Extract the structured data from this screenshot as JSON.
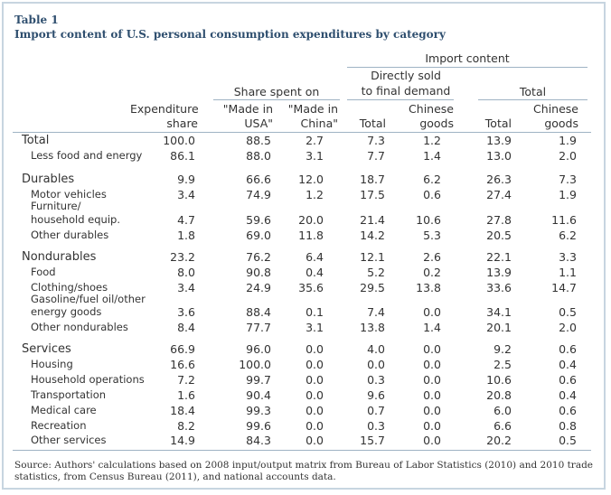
{
  "title": {
    "table_number": "Table 1",
    "caption": "Import content of U.S. personal consumption expenditures by category"
  },
  "headers": {
    "import_content": "Import content",
    "directly_sold_line1": "Directly sold",
    "directly_sold_line2": "to final demand",
    "total_group": "Total",
    "share_spent_on": "Share spent on",
    "expenditure_line1": "Expenditure",
    "expenditure_line2": "share",
    "made_usa_line1": "\"Made in",
    "made_usa_line2": "USA\"",
    "made_china_line1": "\"Made in",
    "made_china_line2": "China\"",
    "total_col": "Total",
    "chinese_line1": "Chinese",
    "chinese_line2": "goods",
    "total_col2": "Total",
    "chinese2_line1": "Chinese",
    "chinese2_line2": "goods"
  },
  "rows": [
    {
      "label": "Total",
      "values": [
        "100.0",
        "88.5",
        "2.7",
        "7.3",
        "1.2",
        "13.9",
        "1.9"
      ]
    },
    {
      "label": "Less food and energy",
      "values": [
        "86.1",
        "88.0",
        "3.1",
        "7.7",
        "1.4",
        "13.0",
        "2.0"
      ]
    },
    {
      "label": "Durables",
      "values": [
        "9.9",
        "66.6",
        "12.0",
        "18.7",
        "6.2",
        "26.3",
        "7.3"
      ]
    },
    {
      "label": "Motor vehicles",
      "values": [
        "3.4",
        "74.9",
        "1.2",
        "17.5",
        "0.6",
        "27.4",
        "1.9"
      ]
    },
    {
      "label_line1": "Furniture/",
      "label_line2": "household equip.",
      "values": [
        "4.7",
        "59.6",
        "20.0",
        "21.4",
        "10.6",
        "27.8",
        "11.6"
      ]
    },
    {
      "label": "Other durables",
      "values": [
        "1.8",
        "69.0",
        "11.8",
        "14.2",
        "5.3",
        "20.5",
        "6.2"
      ]
    },
    {
      "label": "Nondurables",
      "values": [
        "23.2",
        "76.2",
        "6.4",
        "12.1",
        "2.6",
        "22.1",
        "3.3"
      ]
    },
    {
      "label": "Food",
      "values": [
        "8.0",
        "90.8",
        "0.4",
        "5.2",
        "0.2",
        "13.9",
        "1.1"
      ]
    },
    {
      "label": "Clothing/shoes",
      "values": [
        "3.4",
        "24.9",
        "35.6",
        "29.5",
        "13.8",
        "33.6",
        "14.7"
      ]
    },
    {
      "label_line1": "Gasoline/fuel oil/other",
      "label_line2": "energy goods",
      "values": [
        "3.6",
        "88.4",
        "0.1",
        "7.4",
        "0.0",
        "34.1",
        "0.5"
      ]
    },
    {
      "label": "Other nondurables",
      "values": [
        "8.4",
        "77.7",
        "3.1",
        "13.8",
        "1.4",
        "20.1",
        "2.0"
      ]
    },
    {
      "label": "Services",
      "values": [
        "66.9",
        "96.0",
        "0.0",
        "4.0",
        "0.0",
        "9.2",
        "0.6"
      ]
    },
    {
      "label": "Housing",
      "values": [
        "16.6",
        "100.0",
        "0.0",
        "0.0",
        "0.0",
        "2.5",
        "0.4"
      ]
    },
    {
      "label": "Household operations",
      "values": [
        "7.2",
        "99.7",
        "0.0",
        "0.3",
        "0.0",
        "10.6",
        "0.6"
      ]
    },
    {
      "label": "Transportation",
      "values": [
        "1.6",
        "90.4",
        "0.0",
        "9.6",
        "0.0",
        "20.8",
        "0.4"
      ]
    },
    {
      "label": "Medical care",
      "values": [
        "18.4",
        "99.3",
        "0.0",
        "0.7",
        "0.0",
        "6.0",
        "0.6"
      ]
    },
    {
      "label": "Recreation",
      "values": [
        "8.2",
        "99.6",
        "0.0",
        "0.3",
        "0.0",
        "6.6",
        "0.8"
      ]
    },
    {
      "label": "Other services",
      "values": [
        "14.9",
        "84.3",
        "0.0",
        "15.7",
        "0.0",
        "20.2",
        "0.5"
      ]
    }
  ],
  "source": "Source: Authors' calculations based on 2008 input/output matrix from Bureau of Labor Statistics (2010) and 2010 trade statistics, from Census Bureau (2011), and national accounts data.",
  "colors": {
    "title": "#2f4f6f",
    "border": "#c7d5e0",
    "rule": "#9fb3c4",
    "text": "#333333"
  }
}
